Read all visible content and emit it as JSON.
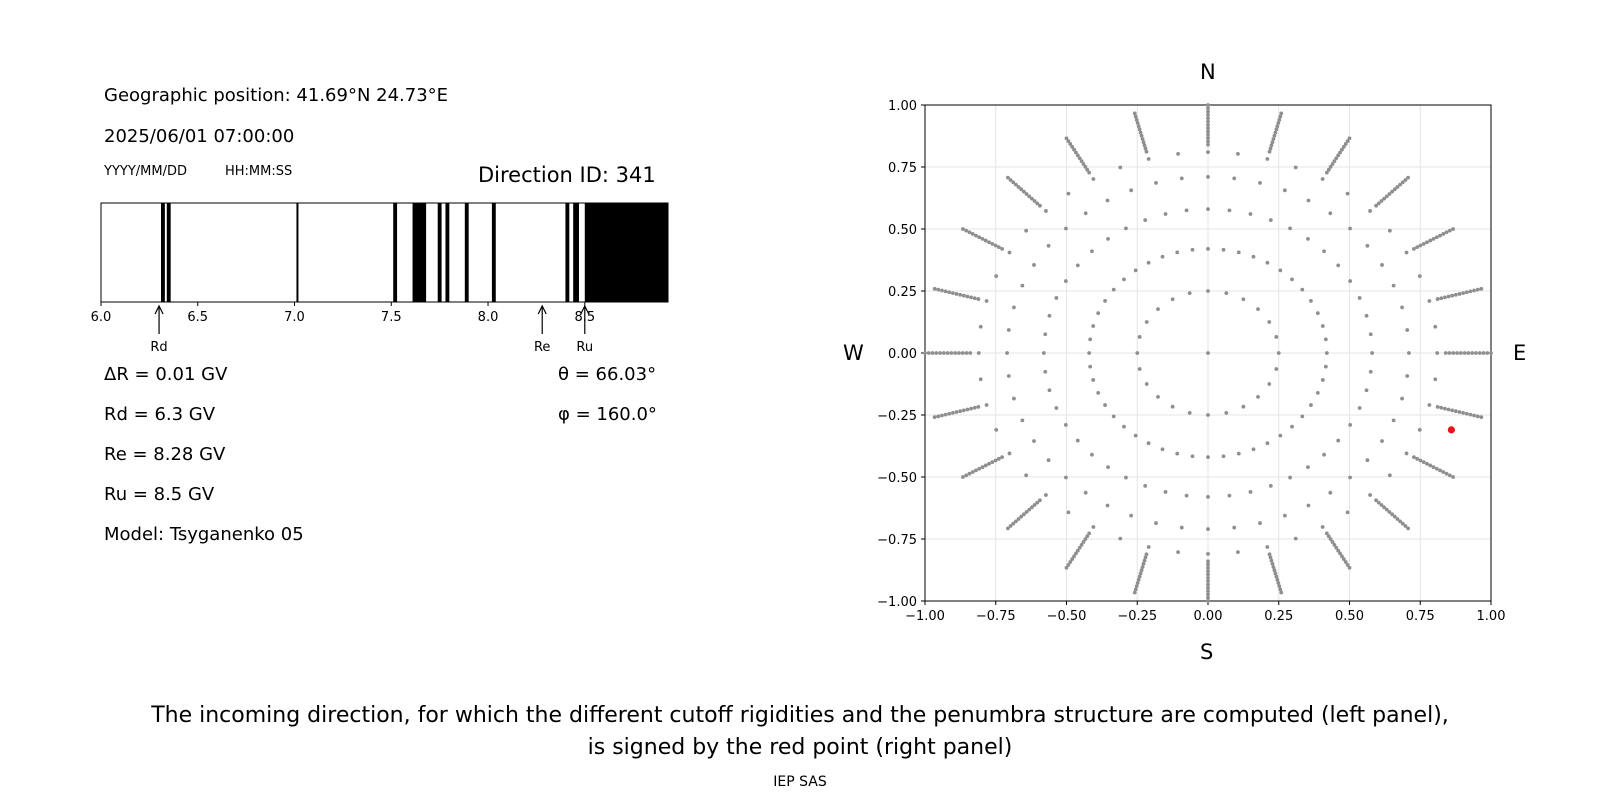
{
  "left_panel": {
    "position_line": "Geographic position: 41.69°N 24.73°E",
    "datetime_line": "2025/06/01 07:00:00",
    "date_format": "YYYY/MM/DD",
    "time_format": "HH:MM:SS",
    "direction_id": "Direction ID: 341",
    "delta_r": "ΔR = 0.01 GV",
    "rd_line": "Rd = 6.3 GV",
    "re_line": "Re = 8.28 GV",
    "ru_line": "Ru = 8.5 GV",
    "model_line": "Model: Tsyganenko 05",
    "theta_line": "θ = 66.03°",
    "phi_line": "φ = 160.0°",
    "markers": [
      {
        "label": "Rd",
        "value": 6.3
      },
      {
        "label": "Re",
        "value": 8.28
      },
      {
        "label": "Ru",
        "value": 8.5
      }
    ]
  },
  "right_panel": {
    "north": "N",
    "south": "S",
    "west": "W",
    "east": "E",
    "highlight_color": "#e8141b",
    "dot_color": "#8f8f8f"
  },
  "caption_line1": "The incoming direction, for which the different cutoff rigidities and the penumbra structure are computed (left panel),",
  "caption_line2": "is signed by the red point (right panel)",
  "footer": "IEP SAS",
  "chart_data": [
    {
      "type": "bar",
      "name": "penumbra",
      "xlim": [
        6.0,
        8.93
      ],
      "xticks": [
        6.0,
        6.5,
        7.0,
        7.5,
        8.0,
        8.5
      ],
      "forbidden_intervals": [
        [
          6.31,
          6.33
        ],
        [
          6.34,
          6.36
        ],
        [
          7.01,
          7.02
        ],
        [
          7.51,
          7.53
        ],
        [
          7.61,
          7.68
        ],
        [
          7.74,
          7.76
        ],
        [
          7.78,
          7.8
        ],
        [
          7.88,
          7.9
        ],
        [
          8.02,
          8.04
        ],
        [
          8.4,
          8.42
        ],
        [
          8.44,
          8.47
        ],
        [
          8.5,
          8.93
        ]
      ],
      "markers": {
        "Rd": 6.3,
        "Re": 8.28,
        "Ru": 8.5
      }
    },
    {
      "type": "scatter",
      "name": "directions",
      "xlim": [
        -1.0,
        1.0
      ],
      "ylim": [
        -1.0,
        1.0
      ],
      "xticks": [
        -1.0,
        -0.75,
        -0.5,
        -0.25,
        0.0,
        0.25,
        0.5,
        0.75,
        1.0
      ],
      "yticks": [
        -1.0,
        -0.75,
        -0.5,
        -0.25,
        0.0,
        0.25,
        0.5,
        0.75,
        1.0
      ],
      "grid": true,
      "center_point": [
        0.0,
        0.0
      ],
      "inner_ring_radius": 0.25,
      "inner_ring_count": 24,
      "middle_ring_radii": [
        0.42,
        0.58,
        0.71,
        0.81
      ],
      "middle_ring_count": 24,
      "spoke_count": 24,
      "spoke_r_range": [
        0.84,
        1.0
      ],
      "selected": [
        0.86,
        -0.31
      ]
    }
  ]
}
